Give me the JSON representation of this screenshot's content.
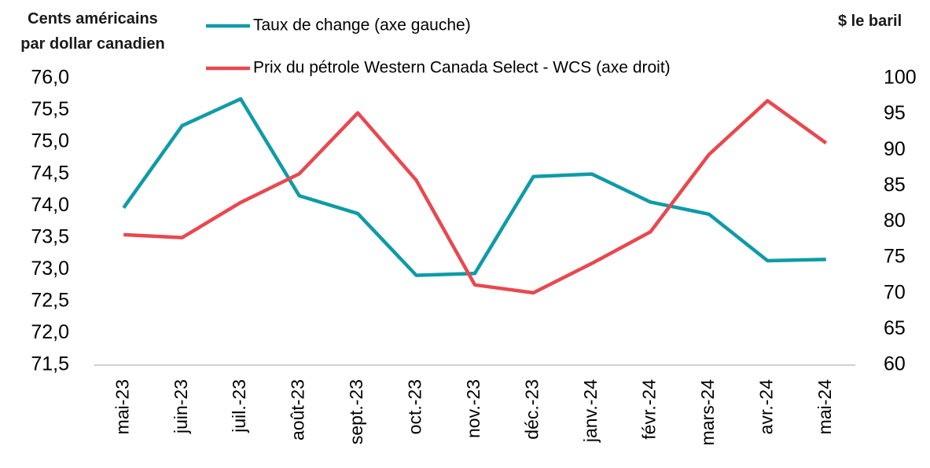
{
  "chart_data": {
    "type": "line",
    "y_label": "Cents américains par dollar canadien",
    "y2_label": "$ le baril",
    "categories": [
      "mai-23",
      "juin-23",
      "juil.-23",
      "août-23",
      "sept.-23",
      "oct.-23",
      "nov.-23",
      "déc.-23",
      "janv.-24",
      "févr.-24",
      "mars-24",
      "avr.-24",
      "mai-24"
    ],
    "series": [
      {
        "name": "Taux de change (axe gauche)",
        "color": "#0f9ba6",
        "values": [
          73.97,
          75.26,
          75.68,
          74.16,
          73.88,
          72.91,
          72.94,
          74.46,
          74.5,
          74.06,
          73.87,
          73.14,
          73.16
        ]
      },
      {
        "name": "Prix du pétrole Western Canada Select - WCS (axe droit)",
        "color": "#e8484f",
        "axis": "y2",
        "values": [
          78.2,
          77.8,
          82.7,
          86.7,
          95.2,
          85.8,
          71.2,
          70.1,
          74.2,
          78.6,
          89.4,
          96.9,
          91.0
        ]
      }
    ],
    "ylim": [
      71.5,
      76.0
    ],
    "yticks": [
      {
        "value": 71.5,
        "label": "71,5"
      },
      {
        "value": 72.0,
        "label": "72,0"
      },
      {
        "value": 72.5,
        "label": "72,5"
      },
      {
        "value": 73.0,
        "label": "73,0"
      },
      {
        "value": 73.5,
        "label": "73,5"
      },
      {
        "value": 74.0,
        "label": "74,0"
      },
      {
        "value": 74.5,
        "label": "74,5"
      },
      {
        "value": 75.0,
        "label": "75,0"
      },
      {
        "value": 75.5,
        "label": "75,5"
      },
      {
        "value": 76.0,
        "label": "76,0"
      }
    ],
    "y2lim": [
      60,
      100
    ],
    "y2ticks": [
      60,
      65,
      70,
      75,
      80,
      85,
      90,
      95,
      100
    ],
    "grid": false
  }
}
